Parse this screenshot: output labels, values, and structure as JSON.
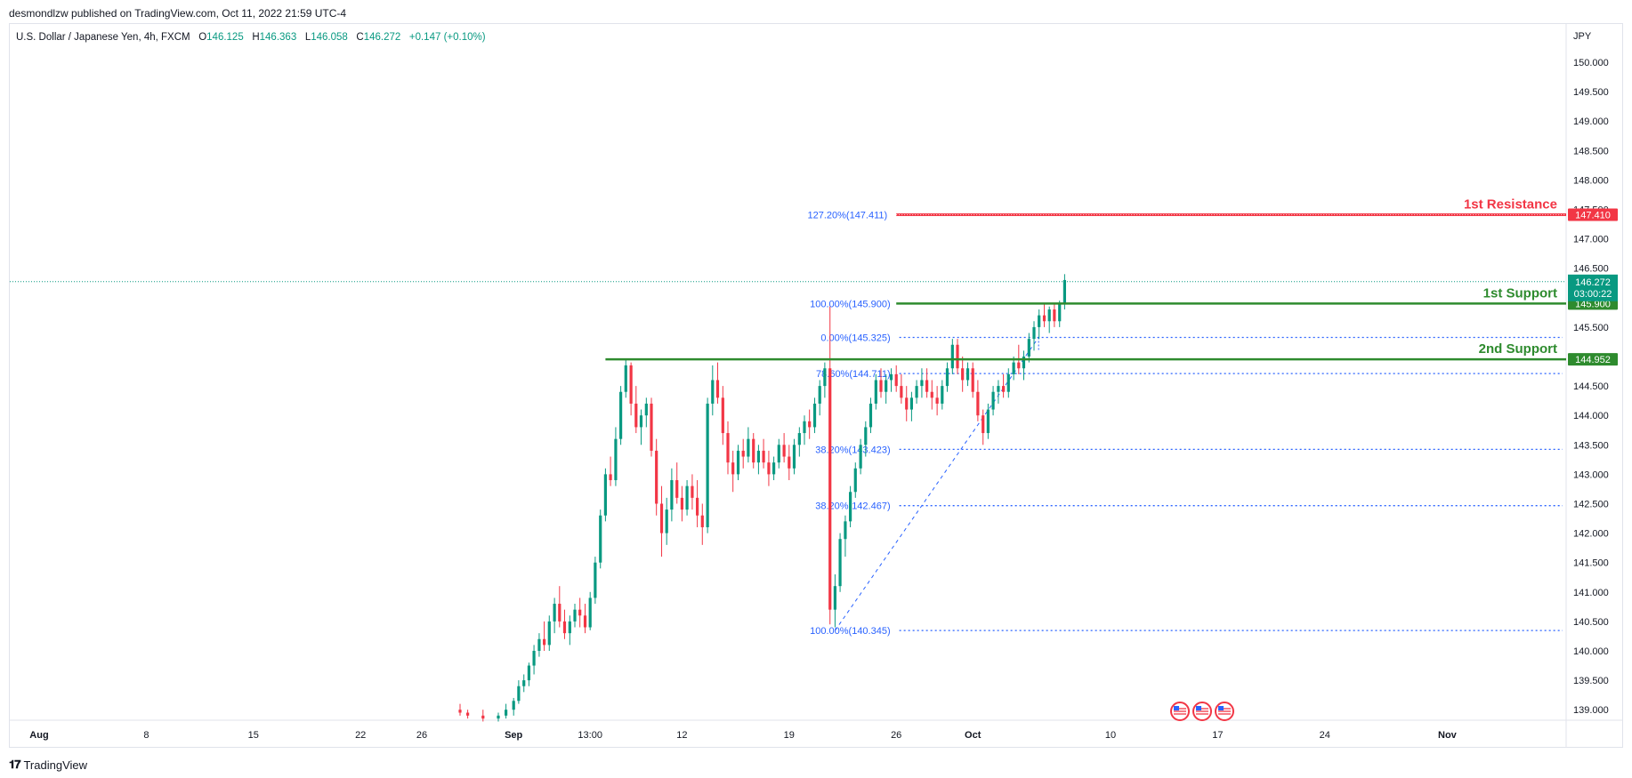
{
  "header": {
    "published_by": "desmondlzw published on TradingView.com, Oct 11, 2022 21:59 UTC-4"
  },
  "symbol": {
    "name": "U.S. Dollar / Japanese Yen, 4h, FXCM",
    "o_label": "O",
    "o": "146.125",
    "h_label": "H",
    "h": "146.363",
    "l_label": "L",
    "l": "146.058",
    "c_label": "C",
    "c": "146.272",
    "change": "+0.147 (+0.10%)"
  },
  "footer": {
    "brand": "TradingView",
    "logo": "tv-logo-icon"
  },
  "colors": {
    "up": "#089981",
    "down": "#f23645",
    "support": "#2e8b2e",
    "resistance": "#f23645",
    "fib": "#2962ff",
    "last_price": "#089981"
  },
  "chart_data": {
    "type": "candlestick",
    "currency": "JPY",
    "y_ticks": [
      "150.000",
      "149.500",
      "149.000",
      "148.500",
      "148.000",
      "147.500",
      "147.000",
      "146.500",
      "146.000",
      "145.500",
      "145.000",
      "144.500",
      "144.000",
      "143.500",
      "143.000",
      "142.500",
      "142.000",
      "141.500",
      "141.000",
      "140.500",
      "140.000",
      "139.500",
      "139.000"
    ],
    "y_tick_values": [
      150,
      149.5,
      149,
      148.5,
      148,
      147.5,
      147,
      146.5,
      146,
      145.5,
      145,
      144.5,
      144,
      143.5,
      143,
      142.5,
      142,
      141.5,
      141,
      140.5,
      140,
      139.5,
      139
    ],
    "ylim": [
      138.75,
      150.25
    ],
    "x_ticks": [
      {
        "label": "Aug",
        "day": 0
      },
      {
        "label": "8",
        "day": 7
      },
      {
        "label": "15",
        "day": 14
      },
      {
        "label": "22",
        "day": 21
      },
      {
        "label": "26",
        "day": 25
      },
      {
        "label": "Sep",
        "day": 31
      },
      {
        "label": "13:00",
        "day": 36
      },
      {
        "label": "12",
        "day": 42
      },
      {
        "label": "19",
        "day": 49
      },
      {
        "label": "26",
        "day": 56
      },
      {
        "label": "Oct",
        "day": 61
      },
      {
        "label": "10",
        "day": 70
      },
      {
        "label": "17",
        "day": 77
      },
      {
        "label": "24",
        "day": 84
      },
      {
        "label": "Nov",
        "day": 92
      }
    ],
    "bold_x_ticks": [
      "Aug",
      "Sep",
      "Oct",
      "Nov"
    ],
    "last_price": {
      "value": 146.272,
      "label": "146.272",
      "countdown": "03:00:22"
    },
    "levels": [
      {
        "name": "1st Resistance",
        "value": 147.41,
        "tag": "147.410",
        "kind": "resistance",
        "start_day": 56
      },
      {
        "name": "1st Support",
        "value": 145.9,
        "tag": "145.900",
        "kind": "support",
        "start_day": 56
      },
      {
        "name": "2nd Support",
        "value": 144.952,
        "tag": "144.952",
        "kind": "support",
        "start_day": 37
      }
    ],
    "fib_levels": [
      {
        "label": "127.20%(147.411)",
        "value": 147.411
      },
      {
        "label": "100.00%(145.900)",
        "value": 145.9
      },
      {
        "label": "0.00%(145.325)",
        "value": 145.325
      },
      {
        "label": "78.60%(144.711)",
        "value": 144.711
      },
      {
        "label": "38.20%(143.423)",
        "value": 143.423
      },
      {
        "label": "38.20%(142.467)",
        "value": 142.467
      },
      {
        "label": "100.00%(140.345)",
        "value": 140.345
      }
    ],
    "events": [
      "us-flag-icon",
      "us-flag-icon",
      "us-flag-icon"
    ],
    "candles": [
      [
        27.5,
        139.0,
        139.1,
        138.9,
        138.95
      ],
      [
        28.0,
        138.95,
        139.0,
        138.85,
        138.9
      ],
      [
        29.0,
        138.9,
        139.0,
        138.8,
        138.85
      ],
      [
        30.0,
        138.85,
        138.95,
        138.8,
        138.9
      ],
      [
        30.5,
        138.9,
        139.1,
        138.85,
        139.0
      ],
      [
        31.0,
        139.0,
        139.2,
        138.9,
        139.15
      ],
      [
        31.33,
        139.15,
        139.5,
        139.1,
        139.4
      ],
      [
        31.67,
        139.4,
        139.6,
        139.3,
        139.5
      ],
      [
        32.0,
        139.5,
        139.8,
        139.4,
        139.75
      ],
      [
        32.33,
        139.75,
        140.1,
        139.6,
        140.0
      ],
      [
        32.67,
        140.0,
        140.3,
        139.9,
        140.2
      ],
      [
        33.0,
        140.2,
        140.5,
        140.0,
        140.1
      ],
      [
        33.33,
        140.1,
        140.6,
        140.0,
        140.5
      ],
      [
        33.67,
        140.5,
        140.9,
        140.3,
        140.8
      ],
      [
        34.0,
        140.8,
        141.1,
        140.4,
        140.5
      ],
      [
        34.33,
        140.5,
        140.7,
        140.2,
        140.3
      ],
      [
        34.67,
        140.3,
        140.6,
        140.1,
        140.5
      ],
      [
        35.0,
        140.5,
        140.8,
        140.4,
        140.7
      ],
      [
        35.33,
        140.7,
        140.9,
        140.4,
        140.6
      ],
      [
        35.67,
        140.6,
        140.8,
        140.3,
        140.4
      ],
      [
        36.0,
        140.4,
        141.0,
        140.35,
        140.9
      ],
      [
        36.33,
        140.9,
        141.6,
        140.8,
        141.5
      ],
      [
        36.67,
        141.5,
        142.4,
        141.4,
        142.3
      ],
      [
        37.0,
        142.3,
        143.1,
        142.2,
        143.0
      ],
      [
        37.33,
        143.0,
        143.3,
        142.8,
        142.9
      ],
      [
        37.67,
        142.9,
        143.8,
        142.8,
        143.6
      ],
      [
        38.0,
        143.6,
        144.5,
        143.5,
        144.4
      ],
      [
        38.33,
        144.4,
        144.95,
        144.3,
        144.85
      ],
      [
        38.67,
        144.85,
        144.9,
        144.0,
        144.2
      ],
      [
        39.0,
        144.2,
        144.5,
        143.7,
        143.8
      ],
      [
        39.33,
        143.8,
        144.1,
        143.5,
        144.0
      ],
      [
        39.67,
        144.0,
        144.3,
        143.8,
        144.2
      ],
      [
        40.0,
        144.2,
        144.3,
        143.3,
        143.4
      ],
      [
        40.33,
        143.4,
        143.6,
        142.3,
        142.5
      ],
      [
        40.67,
        142.5,
        142.8,
        141.6,
        142.0
      ],
      [
        41.0,
        142.0,
        142.6,
        141.8,
        142.4
      ],
      [
        41.33,
        142.4,
        143.1,
        142.2,
        142.9
      ],
      [
        41.67,
        142.9,
        143.2,
        142.5,
        142.6
      ],
      [
        42.0,
        142.6,
        142.8,
        142.2,
        142.4
      ],
      [
        42.33,
        142.4,
        142.9,
        142.3,
        142.8
      ],
      [
        42.67,
        142.8,
        143.0,
        142.4,
        142.6
      ],
      [
        43.0,
        142.6,
        142.9,
        142.1,
        142.3
      ],
      [
        43.33,
        142.3,
        142.5,
        141.8,
        142.1
      ],
      [
        43.67,
        142.1,
        144.3,
        142.0,
        144.2
      ],
      [
        44.0,
        144.2,
        144.85,
        144.0,
        144.6
      ],
      [
        44.33,
        144.6,
        144.9,
        144.2,
        144.3
      ],
      [
        44.67,
        144.3,
        144.5,
        143.5,
        143.7
      ],
      [
        45.0,
        143.7,
        143.9,
        143.0,
        143.2
      ],
      [
        45.33,
        143.2,
        143.4,
        142.7,
        143.0
      ],
      [
        45.67,
        143.0,
        143.5,
        142.9,
        143.4
      ],
      [
        46.0,
        143.4,
        143.6,
        143.1,
        143.3
      ],
      [
        46.33,
        143.3,
        143.8,
        143.2,
        143.6
      ],
      [
        46.67,
        143.6,
        143.7,
        143.1,
        143.2
      ],
      [
        47.0,
        143.2,
        143.5,
        143.0,
        143.4
      ],
      [
        47.33,
        143.4,
        143.6,
        143.1,
        143.2
      ],
      [
        47.67,
        143.2,
        143.4,
        142.8,
        143.0
      ],
      [
        48.0,
        143.0,
        143.3,
        142.9,
        143.2
      ],
      [
        48.33,
        143.2,
        143.6,
        143.1,
        143.5
      ],
      [
        48.67,
        143.5,
        143.7,
        143.2,
        143.3
      ],
      [
        49.0,
        143.3,
        143.5,
        142.9,
        143.1
      ],
      [
        49.33,
        143.1,
        143.6,
        143.0,
        143.5
      ],
      [
        49.67,
        143.5,
        143.8,
        143.3,
        143.7
      ],
      [
        50.0,
        143.7,
        144.0,
        143.5,
        143.9
      ],
      [
        50.33,
        143.9,
        144.1,
        143.6,
        143.8
      ],
      [
        50.67,
        143.8,
        144.3,
        143.7,
        144.2
      ],
      [
        51.0,
        144.2,
        144.6,
        144.0,
        144.5
      ],
      [
        51.33,
        144.5,
        144.9,
        144.3,
        144.8
      ],
      [
        51.67,
        144.8,
        145.85,
        140.45,
        140.7
      ],
      [
        52.0,
        140.7,
        141.3,
        140.4,
        141.1
      ],
      [
        52.33,
        141.1,
        142.0,
        141.0,
        141.9
      ],
      [
        52.67,
        141.9,
        142.3,
        141.6,
        142.2
      ],
      [
        53.0,
        142.2,
        142.8,
        142.1,
        142.7
      ],
      [
        53.33,
        142.7,
        143.2,
        142.6,
        143.1
      ],
      [
        53.67,
        143.1,
        143.6,
        143.0,
        143.5
      ],
      [
        54.0,
        143.5,
        143.9,
        143.3,
        143.8
      ],
      [
        54.33,
        143.8,
        144.3,
        143.7,
        144.2
      ],
      [
        54.67,
        144.2,
        144.7,
        144.1,
        144.6
      ],
      [
        55.0,
        144.6,
        144.8,
        144.3,
        144.4
      ],
      [
        55.33,
        144.4,
        144.7,
        144.2,
        144.6
      ],
      [
        55.67,
        144.6,
        144.8,
        144.4,
        144.7
      ],
      [
        56.0,
        144.7,
        144.85,
        144.4,
        144.5
      ],
      [
        56.33,
        144.5,
        144.7,
        144.2,
        144.3
      ],
      [
        56.67,
        144.3,
        144.5,
        143.9,
        144.1
      ],
      [
        57.0,
        144.1,
        144.4,
        143.9,
        144.3
      ],
      [
        57.33,
        144.3,
        144.6,
        144.2,
        144.5
      ],
      [
        57.67,
        144.5,
        144.8,
        144.3,
        144.6
      ],
      [
        58.0,
        144.6,
        144.8,
        144.3,
        144.4
      ],
      [
        58.33,
        144.4,
        144.6,
        144.1,
        144.3
      ],
      [
        58.67,
        144.3,
        144.5,
        144.0,
        144.2
      ],
      [
        59.0,
        144.2,
        144.6,
        144.1,
        144.5
      ],
      [
        59.33,
        144.5,
        144.9,
        144.4,
        144.8
      ],
      [
        59.67,
        144.8,
        145.3,
        144.7,
        145.2
      ],
      [
        60.0,
        145.2,
        145.3,
        144.7,
        144.8
      ],
      [
        60.33,
        144.8,
        145.0,
        144.4,
        144.6
      ],
      [
        60.67,
        144.6,
        144.9,
        144.5,
        144.8
      ],
      [
        61.0,
        144.8,
        144.9,
        144.3,
        144.4
      ],
      [
        61.33,
        144.4,
        144.6,
        143.9,
        144.0
      ],
      [
        61.67,
        144.0,
        144.1,
        143.5,
        143.7
      ],
      [
        62.0,
        143.7,
        144.2,
        143.6,
        144.1
      ],
      [
        62.33,
        144.1,
        144.5,
        144.0,
        144.4
      ],
      [
        62.67,
        144.4,
        144.6,
        144.2,
        144.5
      ],
      [
        63.0,
        144.5,
        144.7,
        144.3,
        144.4
      ],
      [
        63.33,
        144.4,
        144.8,
        144.3,
        144.7
      ],
      [
        63.67,
        144.7,
        145.0,
        144.6,
        144.9
      ],
      [
        64.0,
        144.9,
        145.2,
        144.7,
        144.8
      ],
      [
        64.33,
        144.8,
        145.1,
        144.6,
        145.0
      ],
      [
        64.67,
        145.0,
        145.4,
        144.9,
        145.3
      ],
      [
        65.0,
        145.3,
        145.6,
        145.1,
        145.5
      ],
      [
        65.33,
        145.5,
        145.8,
        145.3,
        145.7
      ],
      [
        65.67,
        145.7,
        145.9,
        145.5,
        145.6
      ],
      [
        66.0,
        145.6,
        145.85,
        145.4,
        145.8
      ],
      [
        66.33,
        145.8,
        145.9,
        145.5,
        145.6
      ],
      [
        66.67,
        145.6,
        145.95,
        145.5,
        145.9
      ],
      [
        67.0,
        145.9,
        146.4,
        145.8,
        146.3
      ]
    ]
  }
}
